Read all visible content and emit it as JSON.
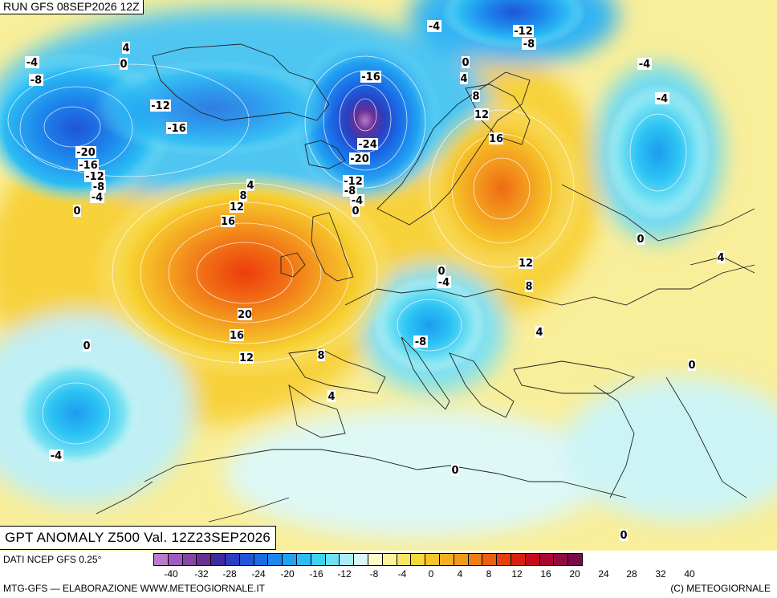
{
  "header": {
    "run_title": "RUN GFS 08SEP2026 12Z"
  },
  "map": {
    "title": "GPT ANOMALY Z500 Val. 12Z23SEP2026",
    "unit_note": "",
    "centers": [
      {
        "name": "azores-ridge",
        "value": 24
      },
      {
        "name": "scandinavia-ridge",
        "value": 20
      },
      {
        "name": "iceland-low",
        "value": -28
      },
      {
        "name": "greenland-low",
        "value": -20
      },
      {
        "name": "balkan-low",
        "value": -8
      },
      {
        "name": "atlantic-low",
        "value": -4
      },
      {
        "name": "russia-low",
        "value": -4
      }
    ],
    "contour_labels": [
      "-4",
      "-8",
      "4",
      "0",
      "-12",
      "-16",
      "-16",
      "-20",
      "-16",
      "-12",
      "-8",
      "-4",
      "0",
      "-4",
      "-12",
      "-8",
      "-24",
      "-20",
      "-12",
      "-8",
      "-4",
      "0",
      "0",
      "4",
      "8",
      "12",
      "16",
      "4",
      "8",
      "12",
      "16",
      "20",
      "16",
      "12",
      "8",
      "4",
      "0",
      "-4",
      "0",
      "-8",
      "12",
      "8",
      "4",
      "0",
      "-4",
      "-4",
      "0",
      "4",
      "0",
      "0",
      "-4"
    ]
  },
  "colorbar": {
    "colors": [
      "#b77ccc",
      "#9f5cbf",
      "#8844aa",
      "#6a2f94",
      "#3f2a9e",
      "#2a3fc0",
      "#1f55d8",
      "#1a6be6",
      "#1d87ec",
      "#22a2f2",
      "#2cbcf4",
      "#3ed3f2",
      "#6ee2f2",
      "#a8eef6",
      "#d8f8f8",
      "#fdfbc8",
      "#fbf39a",
      "#f8e660",
      "#f7d835",
      "#f6c52a",
      "#f4af22",
      "#f29a1c",
      "#f07e14",
      "#ee5e10",
      "#e8400c",
      "#d82010",
      "#c40a1c",
      "#aa0830",
      "#920a40",
      "#7a0a4a"
    ],
    "ticks": [
      "-40",
      "-32",
      "-28",
      "-24",
      "-20",
      "-16",
      "-12",
      "-8",
      "-4",
      "0",
      "4",
      "8",
      "12",
      "16",
      "20",
      "24",
      "28",
      "32",
      "40"
    ]
  },
  "footer": {
    "source": "DATI NCEP GFS 0.25°",
    "credit_left": "MTG-GFS — ELABORAZIONE WWW.METEOGIORNALE.IT",
    "credit_right": "(C) METEOGIORNALE"
  }
}
